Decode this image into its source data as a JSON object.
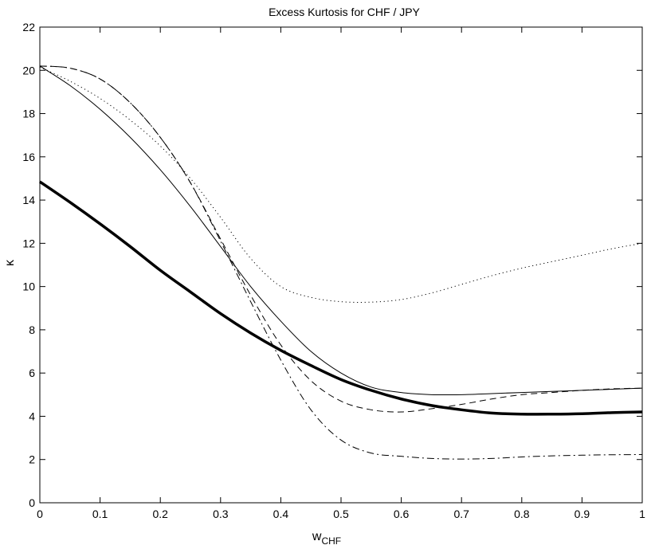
{
  "chart_data": {
    "type": "line",
    "title": "Excess Kurtosis for CHF / JPY",
    "xlabel": "w",
    "xlabel_subscript": "CHF",
    "ylabel": "κ",
    "xlim": [
      0,
      1
    ],
    "ylim": [
      0,
      22
    ],
    "x_ticks": [
      "0",
      "0.1",
      "0.2",
      "0.3",
      "0.4",
      "0.5",
      "0.6",
      "0.7",
      "0.8",
      "0.9",
      "1"
    ],
    "y_ticks": [
      "0",
      "2",
      "4",
      "6",
      "8",
      "10",
      "12",
      "14",
      "16",
      "18",
      "20",
      "22"
    ],
    "x": [
      0,
      0.05,
      0.1,
      0.15,
      0.2,
      0.25,
      0.3,
      0.35,
      0.4,
      0.45,
      0.5,
      0.55,
      0.6,
      0.65,
      0.7,
      0.75,
      0.8,
      0.85,
      0.9,
      0.95,
      1.0
    ],
    "series": [
      {
        "name": "thick-solid",
        "style": "thick-solid",
        "values": [
          14.85,
          13.9,
          12.9,
          11.85,
          10.75,
          9.75,
          8.75,
          7.85,
          7.05,
          6.35,
          5.7,
          5.2,
          4.8,
          4.5,
          4.3,
          4.15,
          4.1,
          4.1,
          4.12,
          4.17,
          4.2
        ]
      },
      {
        "name": "thin-solid",
        "style": "thin-solid",
        "values": [
          20.2,
          19.3,
          18.2,
          16.9,
          15.4,
          13.7,
          11.85,
          10.0,
          8.4,
          7.0,
          6.0,
          5.35,
          5.1,
          5.0,
          5.0,
          5.05,
          5.1,
          5.15,
          5.2,
          5.25,
          5.3
        ]
      },
      {
        "name": "dotted",
        "style": "dotted",
        "values": [
          20.15,
          19.5,
          18.7,
          17.7,
          16.5,
          15.0,
          13.2,
          11.3,
          10.0,
          9.5,
          9.3,
          9.28,
          9.4,
          9.7,
          10.1,
          10.5,
          10.85,
          11.15,
          11.45,
          11.75,
          12.0
        ]
      },
      {
        "name": "dashed",
        "style": "dashed",
        "values": [
          20.2,
          20.1,
          19.6,
          18.5,
          16.9,
          14.8,
          12.2,
          9.6,
          7.3,
          5.65,
          4.7,
          4.3,
          4.2,
          4.35,
          4.55,
          4.8,
          5.0,
          5.1,
          5.2,
          5.27,
          5.3
        ]
      },
      {
        "name": "dash-dot",
        "style": "dash-dot",
        "values": [
          20.2,
          20.1,
          19.6,
          18.5,
          16.9,
          14.8,
          12.1,
          9.3,
          6.6,
          4.3,
          2.9,
          2.3,
          2.15,
          2.05,
          2.02,
          2.05,
          2.12,
          2.17,
          2.2,
          2.22,
          2.23
        ]
      }
    ]
  }
}
